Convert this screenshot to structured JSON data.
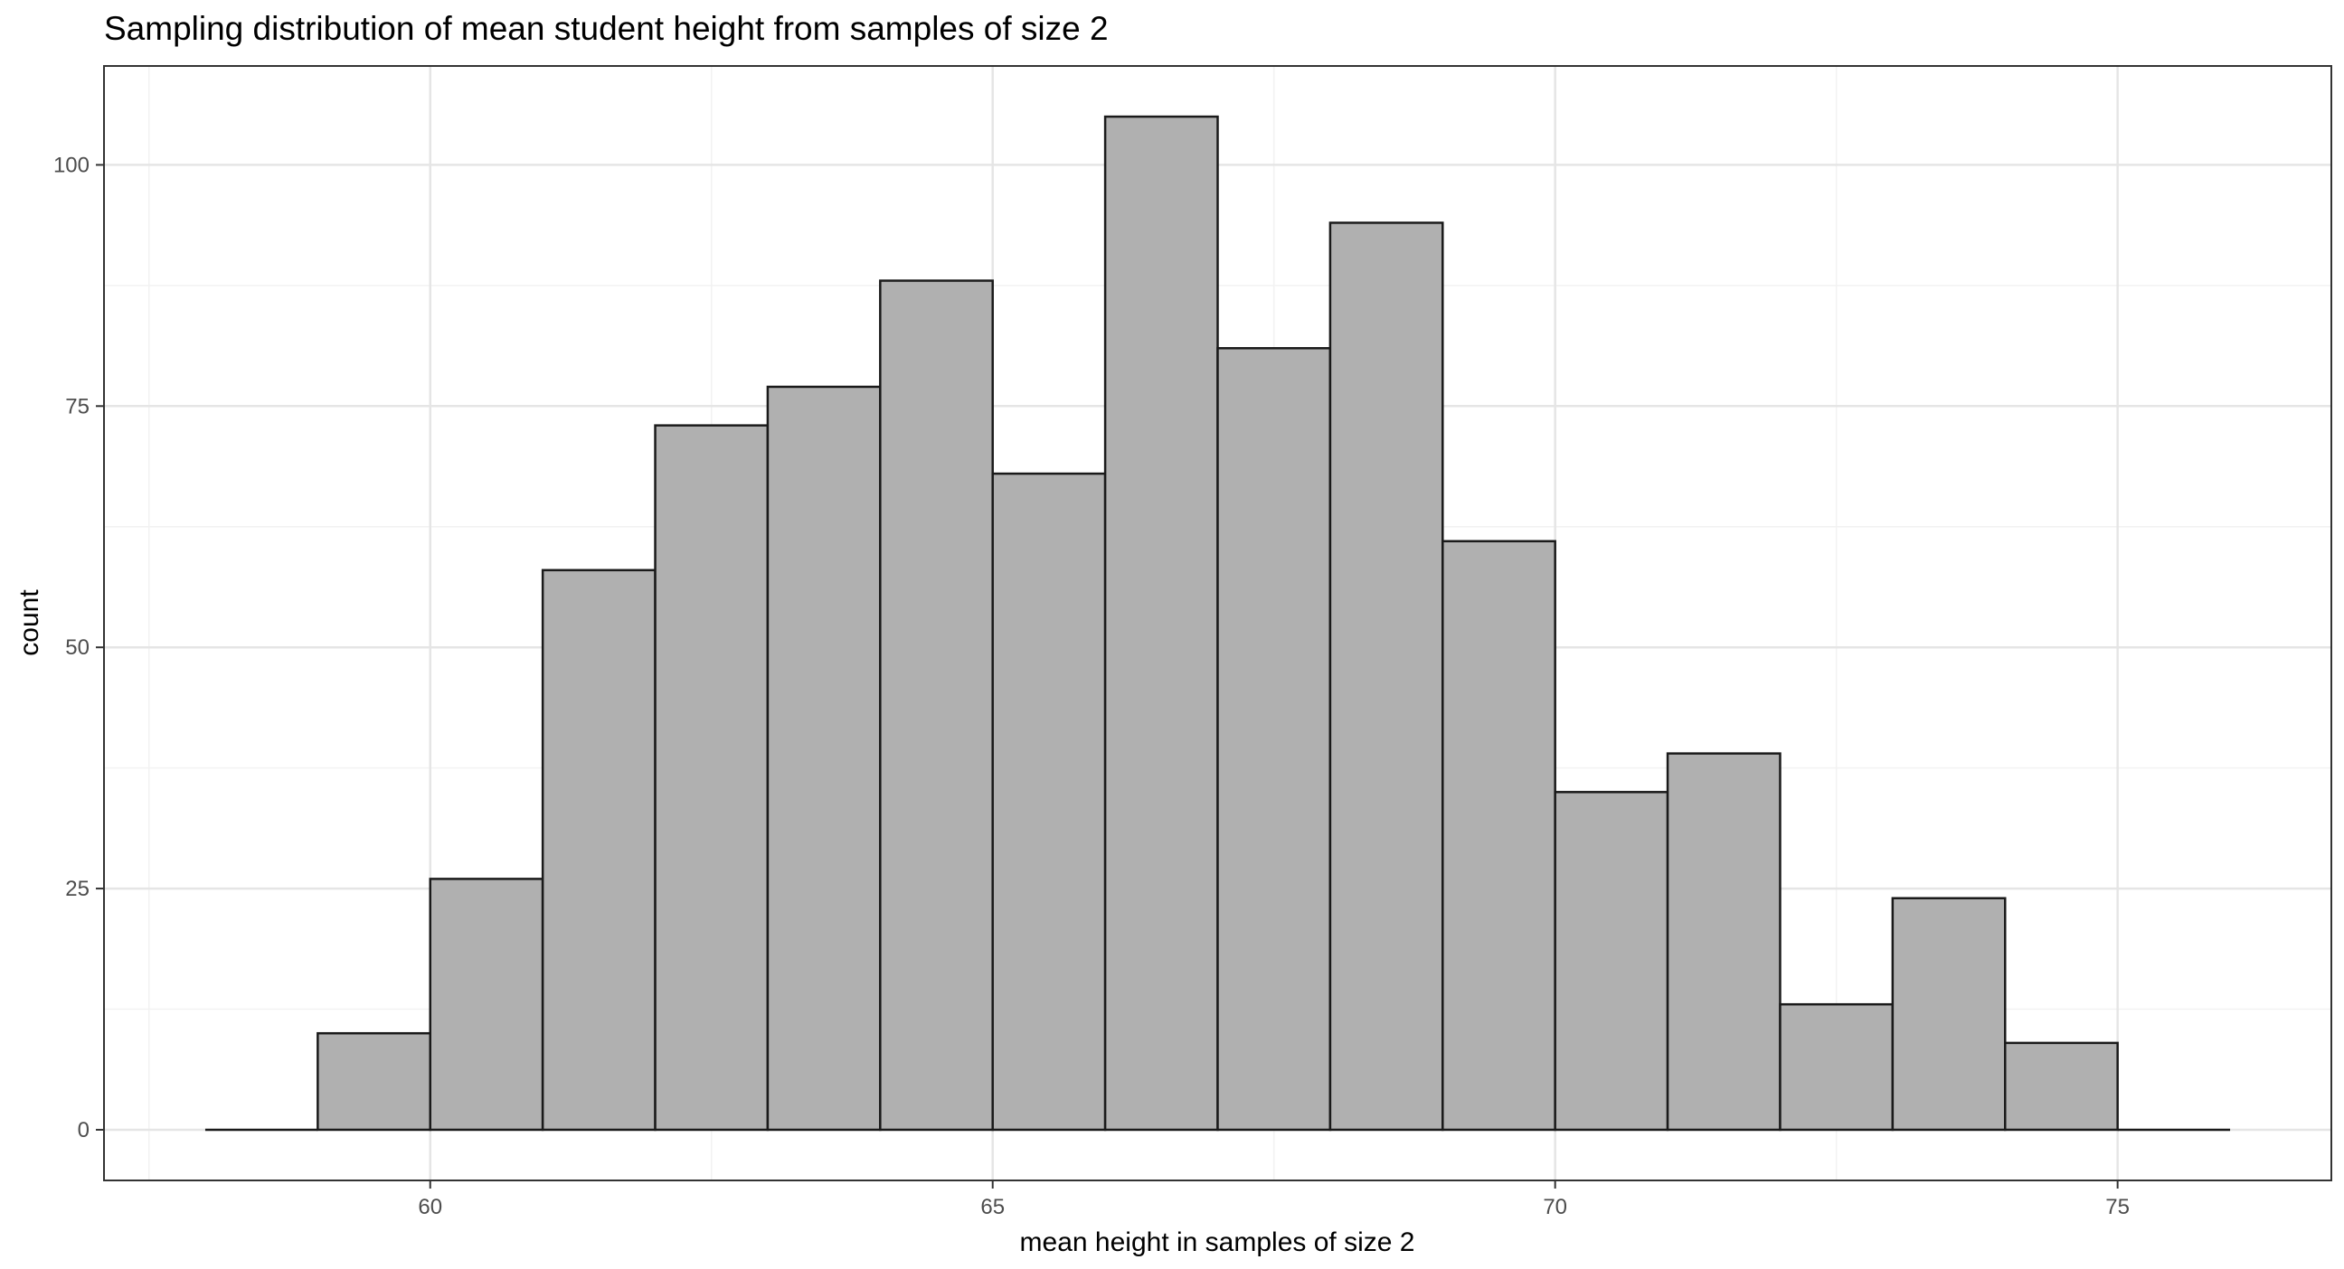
{
  "chart_data": {
    "type": "bar",
    "title": "Sampling distribution of mean student height from samples of size 2",
    "xlabel": "mean height in samples of size 2",
    "ylabel": "count",
    "bin_width": 1,
    "bins": [
      {
        "x0": 58,
        "x1": 59,
        "count": 0
      },
      {
        "x0": 59,
        "x1": 60,
        "count": 10
      },
      {
        "x0": 60,
        "x1": 61,
        "count": 26
      },
      {
        "x0": 61,
        "x1": 62,
        "count": 58
      },
      {
        "x0": 62,
        "x1": 63,
        "count": 73
      },
      {
        "x0": 63,
        "x1": 64,
        "count": 77
      },
      {
        "x0": 64,
        "x1": 65,
        "count": 88
      },
      {
        "x0": 65,
        "x1": 66,
        "count": 68
      },
      {
        "x0": 66,
        "x1": 67,
        "count": 105
      },
      {
        "x0": 67,
        "x1": 68,
        "count": 81
      },
      {
        "x0": 68,
        "x1": 69,
        "count": 94
      },
      {
        "x0": 69,
        "x1": 70,
        "count": 61
      },
      {
        "x0": 70,
        "x1": 71,
        "count": 35
      },
      {
        "x0": 71,
        "x1": 72,
        "count": 39
      },
      {
        "x0": 72,
        "x1": 73,
        "count": 13
      },
      {
        "x0": 73,
        "x1": 74,
        "count": 24
      },
      {
        "x0": 74,
        "x1": 75,
        "count": 9
      },
      {
        "x0": 75,
        "x1": 76,
        "count": 0
      }
    ],
    "xlim": [
      57.1,
      76.9
    ],
    "ylim": [
      -5.25,
      110.25
    ],
    "x_ticks": [
      60,
      65,
      70,
      75
    ],
    "x_minor_ticks": [
      57.5,
      62.5,
      67.5,
      72.5
    ],
    "y_ticks": [
      0,
      25,
      50,
      75,
      100
    ],
    "y_minor_ticks": [
      12.5,
      37.5,
      62.5,
      87.5
    ],
    "grid": true,
    "legend": "none",
    "colors": {
      "bar_fill": "#b0b0b0",
      "bar_stroke": "#1a1a1a",
      "grid_major": "#e5e5e5",
      "grid_minor": "#f2f2f2",
      "panel_border": "#333333",
      "tick_label": "#4d4d4d"
    }
  }
}
